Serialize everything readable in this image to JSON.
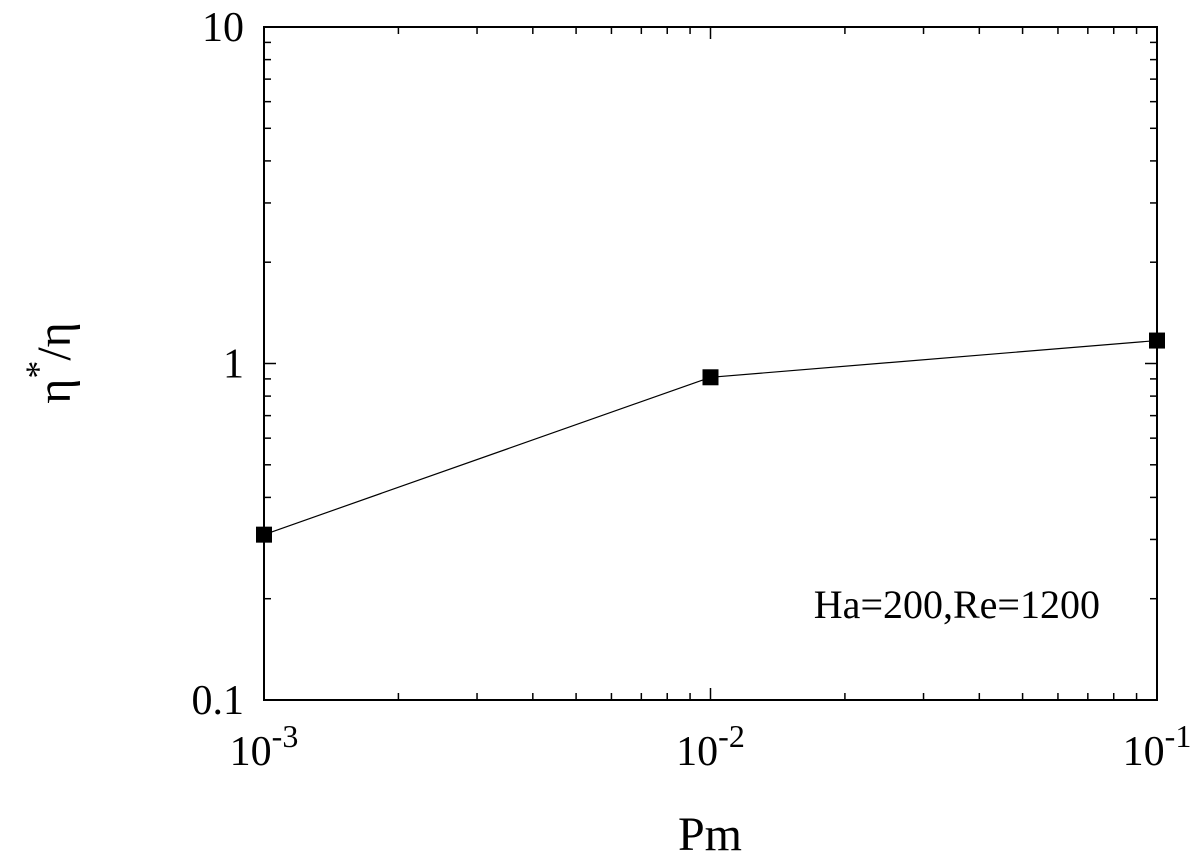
{
  "chart_data": {
    "type": "line",
    "x_scale": "log",
    "y_scale": "log",
    "xlim": [
      0.001,
      0.1
    ],
    "ylim": [
      0.1,
      10
    ],
    "xlabel": "Pm",
    "ylabel_base": "η",
    "ylabel_sup": "*",
    "ylabel_tail": "/η",
    "x_ticks": [
      {
        "value": 0.001,
        "base": "10",
        "exp": "-3"
      },
      {
        "value": 0.01,
        "base": "10",
        "exp": "-2"
      },
      {
        "value": 0.1,
        "base": "10",
        "exp": "-1"
      }
    ],
    "y_ticks": [
      {
        "value": 0.1,
        "label": "0.1"
      },
      {
        "value": 1,
        "label": "1"
      },
      {
        "value": 10,
        "label": "10"
      }
    ],
    "series": [
      {
        "marker": "square",
        "color": "#000000",
        "points": [
          {
            "x": 0.001,
            "y": 0.31
          },
          {
            "x": 0.01,
            "y": 0.91
          },
          {
            "x": 0.1,
            "y": 1.17
          }
        ]
      }
    ],
    "annotation": "Ha=200,Re=1200",
    "annotation_position": "lower-right",
    "grid": false,
    "legend": false
  }
}
